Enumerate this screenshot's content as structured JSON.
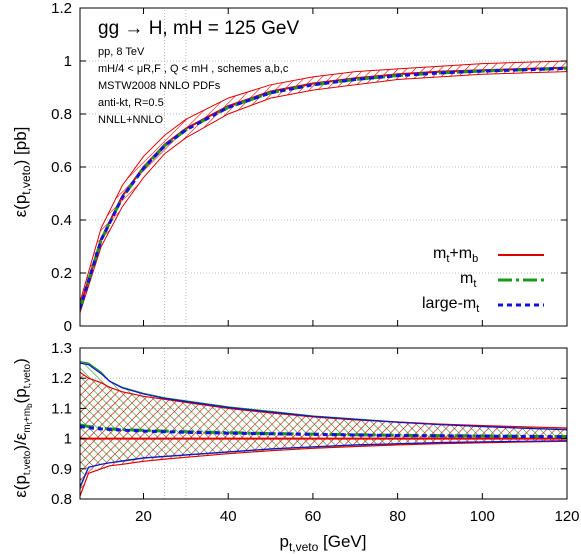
{
  "chart_data": [
    {
      "type": "line",
      "panel": "top",
      "title": "gg → H, mH = 125 GeV",
      "annotations": [
        "pp, 8 TeV",
        "mH/4 < μR,F , Q < mH , schemes a,b,c",
        "MSTW2008 NNLO PDFs",
        "anti-kt, R=0.5",
        "NNLL+NNLO"
      ],
      "xlabel": "",
      "ylabel": "ε(pt,veto) [pb]",
      "xlim": [
        5,
        120
      ],
      "ylim": [
        0,
        1.2
      ],
      "yticks": [
        "0",
        "0.2",
        "0.4",
        "0.6",
        "0.8",
        "1",
        "1.2"
      ],
      "vlines": [
        25,
        30
      ],
      "grid": true,
      "legend_position": "bottom-right",
      "x": [
        5,
        10,
        15,
        20,
        25,
        30,
        40,
        50,
        60,
        70,
        80,
        90,
        100,
        110,
        120
      ],
      "band": {
        "series": "mt+mb",
        "color": "#e00000",
        "upper": [
          0.09,
          0.37,
          0.53,
          0.64,
          0.72,
          0.78,
          0.86,
          0.91,
          0.94,
          0.96,
          0.97,
          0.98,
          0.99,
          0.995,
          1.0
        ],
        "lower": [
          0.05,
          0.3,
          0.45,
          0.56,
          0.65,
          0.71,
          0.8,
          0.86,
          0.89,
          0.91,
          0.93,
          0.94,
          0.95,
          0.955,
          0.96
        ]
      },
      "series": [
        {
          "name": "mt+mb",
          "color": "#e00000",
          "dash": "",
          "values": [
            0.07,
            0.33,
            0.49,
            0.6,
            0.685,
            0.745,
            0.83,
            0.885,
            0.915,
            0.935,
            0.95,
            0.96,
            0.965,
            0.97,
            0.975
          ]
        },
        {
          "name": "mt",
          "color": "#1a9a1a",
          "dash": "14,4,3,4",
          "values": [
            0.066,
            0.325,
            0.485,
            0.595,
            0.68,
            0.74,
            0.825,
            0.88,
            0.91,
            0.93,
            0.945,
            0.955,
            0.962,
            0.967,
            0.972
          ]
        },
        {
          "name": "large-mt",
          "color": "#1010e0",
          "dash": "5,4",
          "values": [
            0.066,
            0.325,
            0.485,
            0.595,
            0.68,
            0.74,
            0.825,
            0.88,
            0.91,
            0.93,
            0.945,
            0.955,
            0.962,
            0.967,
            0.972
          ]
        }
      ],
      "legend": [
        {
          "label_main": "m",
          "label_sub": "t",
          "label_tail": "+m",
          "label_sub2": "b"
        },
        {
          "label_main": "m",
          "label_sub": "t",
          "label_tail": "",
          "label_sub2": ""
        },
        {
          "label_main": "large-m",
          "label_sub": "t",
          "label_tail": "",
          "label_sub2": ""
        }
      ]
    },
    {
      "type": "line",
      "panel": "bottom",
      "xlabel": "pt,veto [GeV]",
      "ylabel": "ε(pt,veto)/εmt+mb(pt,veto)",
      "xlim": [
        5,
        120
      ],
      "ylim": [
        0.8,
        1.3
      ],
      "xticks": [
        "20",
        "40",
        "60",
        "80",
        "100",
        "120"
      ],
      "yticks": [
        "0.8",
        "0.9",
        "1",
        "1.1",
        "1.2",
        "1.3"
      ],
      "vlines": [
        25,
        30
      ],
      "grid": true,
      "x": [
        5,
        7,
        10,
        12,
        15,
        20,
        25,
        30,
        40,
        50,
        60,
        70,
        80,
        90,
        100,
        110,
        120
      ],
      "bands": [
        {
          "series": "mt",
          "color": "#1a9a1a",
          "upper": [
            1.255,
            1.25,
            1.22,
            1.19,
            1.17,
            1.15,
            1.135,
            1.125,
            1.105,
            1.09,
            1.075,
            1.065,
            1.055,
            1.047,
            1.04,
            1.035,
            1.03
          ],
          "lower": [
            0.835,
            0.905,
            0.915,
            0.92,
            0.925,
            0.935,
            0.94,
            0.945,
            0.955,
            0.965,
            0.972,
            0.978,
            0.982,
            0.986,
            0.988,
            0.99,
            0.992
          ]
        },
        {
          "series": "mt+mb",
          "color": "#e00000",
          "upper": [
            1.22,
            1.2,
            1.185,
            1.17,
            1.155,
            1.14,
            1.13,
            1.12,
            1.1,
            1.085,
            1.072,
            1.062,
            1.055,
            1.048,
            1.043,
            1.039,
            1.035
          ],
          "lower": [
            0.81,
            0.885,
            0.9,
            0.91,
            0.915,
            0.925,
            0.932,
            0.938,
            0.95,
            0.96,
            0.968,
            0.974,
            0.979,
            0.983,
            0.986,
            0.989,
            0.991
          ]
        }
      ],
      "series": [
        {
          "name": "mt+mb",
          "color": "#e00000",
          "dash": "",
          "values": [
            1.0,
            1.0,
            1.0,
            1.0,
            1.0,
            1.0,
            1.0,
            1.0,
            1.0,
            1.0,
            1.0,
            1.0,
            1.0,
            1.0,
            1.0,
            1.0,
            1.0
          ]
        },
        {
          "name": "mt",
          "color": "#1a9a1a",
          "dash": "14,4,3,4",
          "values": [
            1.045,
            1.04,
            1.035,
            1.032,
            1.03,
            1.027,
            1.025,
            1.023,
            1.02,
            1.017,
            1.015,
            1.013,
            1.011,
            1.01,
            1.009,
            1.008,
            1.007
          ]
        },
        {
          "name": "large-mt",
          "color": "#1010e0",
          "dash": "5,4",
          "values": [
            1.04,
            1.036,
            1.032,
            1.03,
            1.028,
            1.025,
            1.023,
            1.021,
            1.018,
            1.016,
            1.014,
            1.012,
            1.01,
            1.009,
            1.008,
            1.007,
            1.006
          ]
        }
      ],
      "band_edges": [
        {
          "color": "#1010e0",
          "values_upper": [
            1.25,
            1.245,
            1.215,
            1.19,
            1.168,
            1.148,
            1.133,
            1.123,
            1.103,
            1.088,
            1.074,
            1.064,
            1.054,
            1.046,
            1.04,
            1.034,
            1.029
          ],
          "values_lower": [
            0.84,
            0.905,
            0.915,
            0.92,
            0.926,
            0.936,
            0.941,
            0.946,
            0.956,
            0.966,
            0.973,
            0.979,
            0.983,
            0.987,
            0.989,
            0.991,
            0.993
          ]
        }
      ]
    }
  ]
}
